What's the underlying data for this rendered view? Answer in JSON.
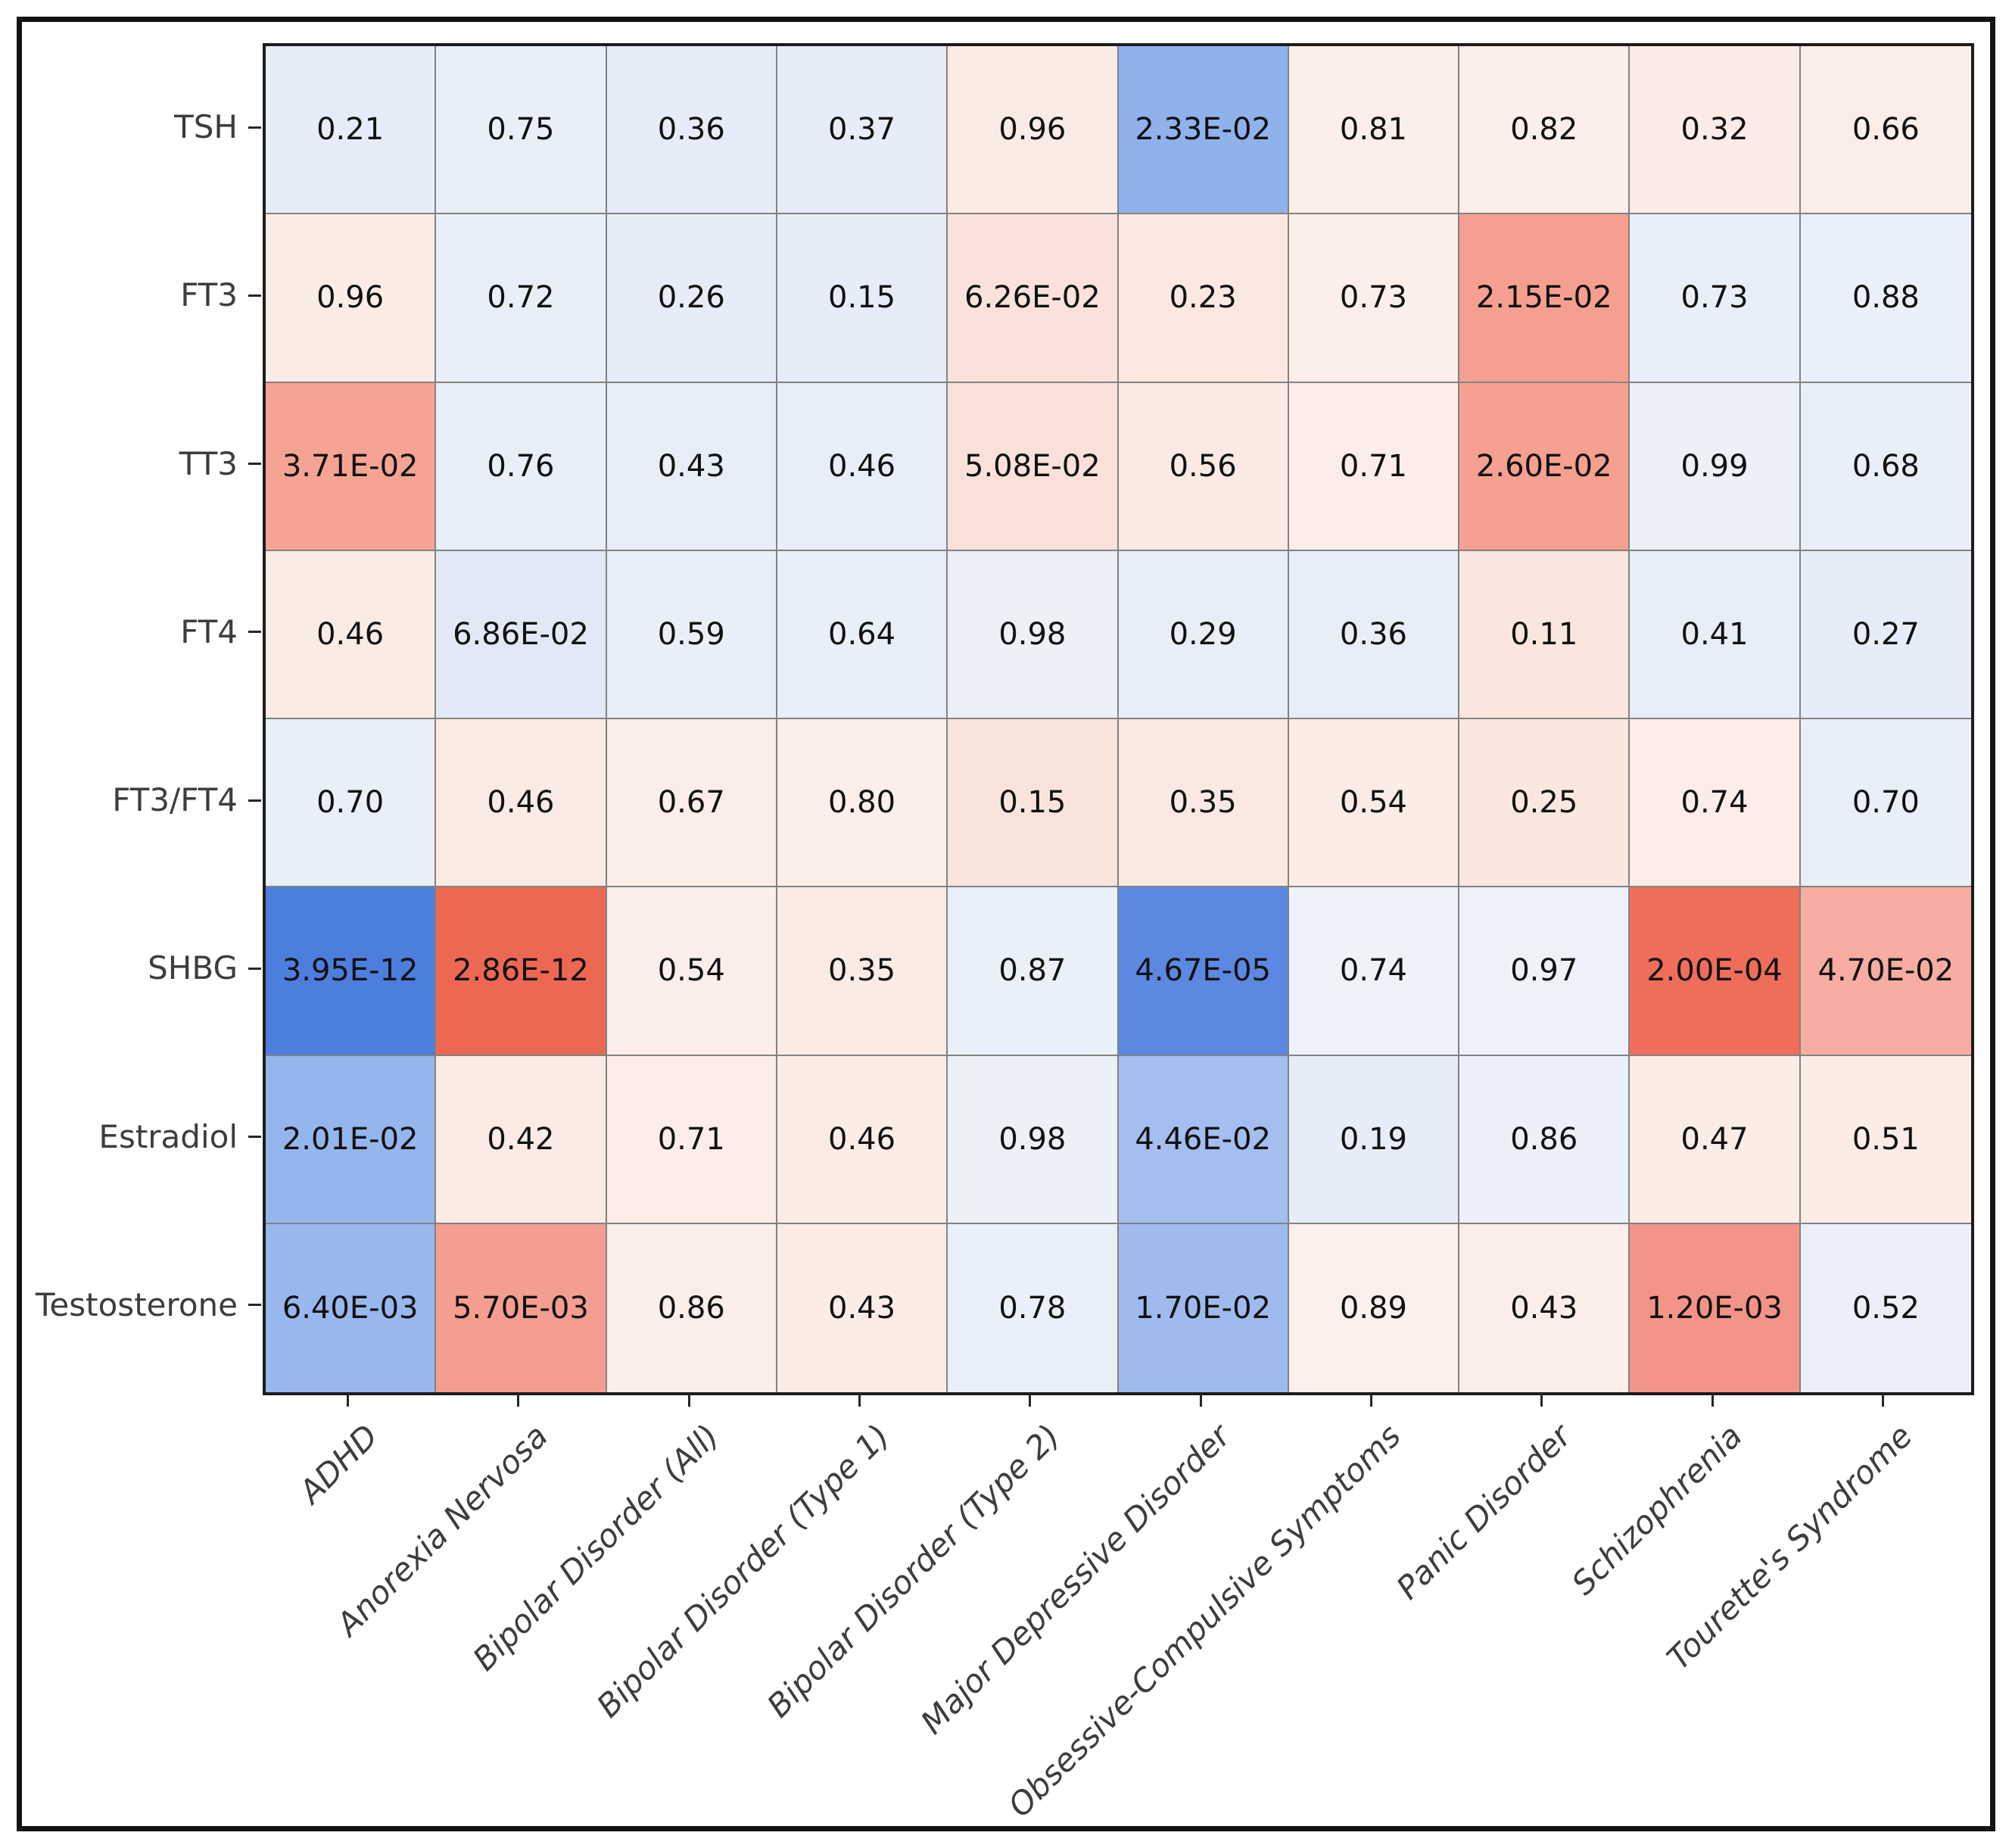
{
  "style": {
    "background": "#ffffff",
    "figure_border_color": "#141414",
    "spine_color": "#1c1c1c",
    "gridline_color": "#828282",
    "tick_color": "#262626",
    "tick_label_color": "#3d3d3d",
    "cell_text_color": "#111111",
    "strong_blue": "#4c7edd",
    "strong_red": "#ec6852"
  },
  "chart_data": {
    "type": "heatmap",
    "title": "",
    "xlabel": "",
    "ylabel": "",
    "legend": "none",
    "grid": "on",
    "rows": [
      "TSH",
      "FT3",
      "TT3",
      "FT4",
      "FT3/FT4",
      "SHBG",
      "Estradiol",
      "Testosterone"
    ],
    "columns": [
      "ADHD",
      "Anorexia Nervosa",
      "Bipolar Disorder (All)",
      "Bipolar Disorder (Type 1)",
      "Bipolar Disorder (Type 2)",
      "Major Depressive Disorder",
      "Obsessive-Compulsive Symptoms",
      "Panic Disorder",
      "Schizophrenia",
      "Tourette's Syndrome"
    ],
    "values": [
      [
        "0.21",
        "0.75",
        "0.36",
        "0.37",
        "0.96",
        "2.33E-02",
        "0.81",
        "0.82",
        "0.32",
        "0.66"
      ],
      [
        "0.96",
        "0.72",
        "0.26",
        "0.15",
        "6.26E-02",
        "0.23",
        "0.73",
        "2.15E-02",
        "0.73",
        "0.88"
      ],
      [
        "3.71E-02",
        "0.76",
        "0.43",
        "0.46",
        "5.08E-02",
        "0.56",
        "0.71",
        "2.60E-02",
        "0.99",
        "0.68"
      ],
      [
        "0.46",
        "6.86E-02",
        "0.59",
        "0.64",
        "0.98",
        "0.29",
        "0.36",
        "0.11",
        "0.41",
        "0.27"
      ],
      [
        "0.70",
        "0.46",
        "0.67",
        "0.80",
        "0.15",
        "0.35",
        "0.54",
        "0.25",
        "0.74",
        "0.70"
      ],
      [
        "3.95E-12",
        "2.86E-12",
        "0.54",
        "0.35",
        "0.87",
        "4.67E-05",
        "0.74",
        "0.97",
        "2.00E-04",
        "4.70E-02"
      ],
      [
        "2.01E-02",
        "0.42",
        "0.71",
        "0.46",
        "0.98",
        "4.46E-02",
        "0.19",
        "0.86",
        "0.47",
        "0.51"
      ],
      [
        "6.40E-03",
        "5.70E-03",
        "0.86",
        "0.43",
        "0.78",
        "1.70E-02",
        "0.89",
        "0.43",
        "1.20E-03",
        "0.52"
      ]
    ],
    "cell_colors": [
      [
        "#e7edf8",
        "#e9eff9",
        "#e7edf8",
        "#e7edf8",
        "#fbebe5",
        "#8fb2ec",
        "#fceee9",
        "#fceee9",
        "#fbece7",
        "#fbede8"
      ],
      [
        "#fbece6",
        "#e9eff9",
        "#e7edf8",
        "#e6ecf8",
        "#f9e2db",
        "#fae8e1",
        "#fceee9",
        "#f59f90",
        "#e9eff9",
        "#eaf0f9"
      ],
      [
        "#f5a494",
        "#e9eff9",
        "#e8eef8",
        "#e8eef8",
        "#f9e1d9",
        "#fbeae4",
        "#fcede8",
        "#f5a090",
        "#ebf0f9",
        "#e9eff9"
      ],
      [
        "#fbebe5",
        "#e2e9f6",
        "#e9eff9",
        "#e9eff9",
        "#ebf0f9",
        "#e8eef8",
        "#e8eef8",
        "#f9e6de",
        "#e8eef8",
        "#e7edf8"
      ],
      [
        "#e9eff9",
        "#fbebe5",
        "#fbede7",
        "#fceee9",
        "#f9e4dc",
        "#fae9e2",
        "#fbece6",
        "#fae7e0",
        "#fcede8",
        "#e9eff9"
      ],
      [
        "#4c7edd",
        "#ec6852",
        "#fcefeb",
        "#fbebe5",
        "#eaf0f9",
        "#5b88e1",
        "#eef3fb",
        "#edf2fa",
        "#ee6e59",
        "#f7ada1"
      ],
      [
        "#95b5ed",
        "#fbebe5",
        "#fcede8",
        "#fbece6",
        "#ebf0f9",
        "#a3beef",
        "#e6ecf8",
        "#ebf0fa",
        "#fbece6",
        "#fbece6"
      ],
      [
        "#98b7ed",
        "#f39e90",
        "#fcefea",
        "#fbece6",
        "#eaf0f9",
        "#9fbbee",
        "#fcf0ec",
        "#fbede8",
        "#f39488",
        "#eaeff9"
      ]
    ]
  }
}
